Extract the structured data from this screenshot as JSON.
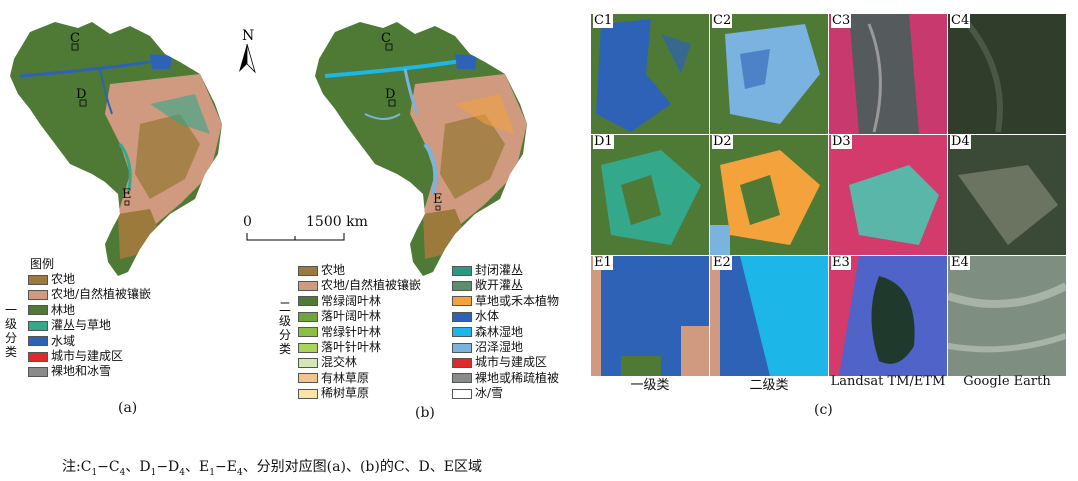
{
  "map_a": {
    "region_markers": [
      "C",
      "D",
      "E"
    ],
    "north_label": "N",
    "scale_zero": "0",
    "scale_label": "1500 km",
    "panel_label": "(a)",
    "legend_title": "图例",
    "legend_side_label": [
      "一",
      "级",
      "分",
      "类"
    ],
    "legend": [
      {
        "label": "农地",
        "color": "#9b7a3c"
      },
      {
        "label": "农地/自然植被镶嵌",
        "color": "#cf9a7f"
      },
      {
        "label": "林地",
        "color": "#4f7a36"
      },
      {
        "label": "灌丛与草地",
        "color": "#33a88a"
      },
      {
        "label": "水域",
        "color": "#2e62b6"
      },
      {
        "label": "城市与建成区",
        "color": "#e02a2a"
      },
      {
        "label": "裸地和冰雪",
        "color": "#8a8a8a"
      }
    ]
  },
  "map_b": {
    "region_markers": [
      "C",
      "D",
      "E"
    ],
    "panel_label": "(b)",
    "legend_side_label": [
      "二",
      "级",
      "分",
      "类"
    ],
    "legend_col1": [
      {
        "label": "农地",
        "color": "#9b7a3c"
      },
      {
        "label": "农地/自然植被镶嵌",
        "color": "#cf9a7f"
      },
      {
        "label": "常绿阔叶林",
        "color": "#4f7a36"
      },
      {
        "label": "落叶阔叶林",
        "color": "#6ea53c"
      },
      {
        "label": "常绿针叶林",
        "color": "#8cbf45"
      },
      {
        "label": "落叶针叶林",
        "color": "#a9d35a"
      },
      {
        "label": "混交林",
        "color": "#d6e7b5"
      },
      {
        "label": "有林草原",
        "color": "#f2c48e"
      },
      {
        "label": "稀树草原",
        "color": "#fbe3a5"
      }
    ],
    "legend_col2": [
      {
        "label": "封闭灌丛",
        "color": "#2a9a82"
      },
      {
        "label": "敞开灌丛",
        "color": "#5c8e6e"
      },
      {
        "label": "草地或禾本植物",
        "color": "#f4a23c"
      },
      {
        "label": "水体",
        "color": "#2e62b6"
      },
      {
        "label": "森林湿地",
        "color": "#1cb6e8"
      },
      {
        "label": "沼泽湿地",
        "color": "#7ab2e0"
      },
      {
        "label": "城市与建成区",
        "color": "#e02a2a"
      },
      {
        "label": "裸地或稀疏植被",
        "color": "#8a8a8a"
      },
      {
        "label": "冰/雪",
        "color": "#ffffff"
      }
    ]
  },
  "panel_c": {
    "panel_label": "(c)",
    "rows": [
      [
        "C1",
        "C2",
        "C3",
        "C4"
      ],
      [
        "D1",
        "D2",
        "D3",
        "D4"
      ],
      [
        "E1",
        "E2",
        "E3",
        "E4"
      ]
    ],
    "column_captions": [
      "一级类",
      "二级类",
      "Landsat TM/ETM",
      "Google Earth"
    ]
  },
  "note": {
    "prefix": "注:C",
    "parts": [
      "1",
      "−C",
      "4",
      "、D",
      "1",
      "−D",
      "4",
      "、E",
      "1",
      "−E",
      "4"
    ],
    "suffix": "、分别对应图(a)、(b)的C、D、E区域"
  }
}
